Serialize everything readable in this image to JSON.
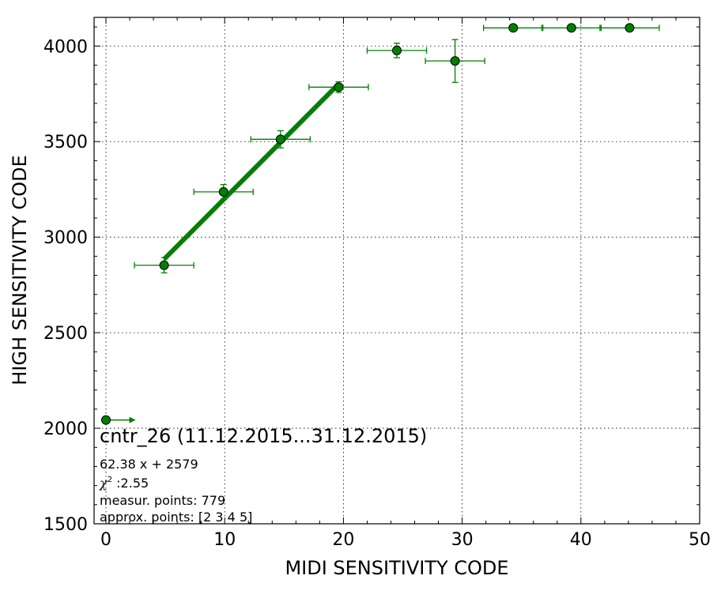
{
  "chart_data": {
    "type": "scatter",
    "xlabel": "MIDI SENSITIVITY CODE",
    "ylabel": "HIGH SENSITIVITY CODE",
    "xlim": [
      -1,
      50
    ],
    "ylim": [
      1500,
      4150
    ],
    "x_ticks": [
      0,
      10,
      20,
      30,
      40,
      50
    ],
    "y_ticks": [
      1500,
      2000,
      2500,
      3000,
      3500,
      4000
    ],
    "grid": true,
    "marker_color": "#008000",
    "fit_color": "#008000",
    "points": [
      {
        "x": 0,
        "y": 2043,
        "xerr_minus": 0,
        "xerr_plus": 2.5,
        "yerr": 0,
        "arrow": true
      },
      {
        "x": 4.9,
        "y": 2853,
        "xerr_minus": 2.5,
        "xerr_plus": 2.5,
        "yerr": 40
      },
      {
        "x": 9.9,
        "y": 3237,
        "xerr_minus": 2.5,
        "xerr_plus": 2.5,
        "yerr": 38
      },
      {
        "x": 14.7,
        "y": 3512,
        "xerr_minus": 2.5,
        "xerr_plus": 2.5,
        "yerr": 45
      },
      {
        "x": 19.6,
        "y": 3785,
        "xerr_minus": 2.5,
        "xerr_plus": 2.5,
        "yerr": 28
      },
      {
        "x": 24.5,
        "y": 3977,
        "xerr_minus": 2.5,
        "xerr_plus": 2.5,
        "yerr": 38
      },
      {
        "x": 29.4,
        "y": 3922,
        "xerr_minus": 2.5,
        "xerr_plus": 2.5,
        "yerr": 112
      },
      {
        "x": 34.3,
        "y": 4095,
        "xerr_minus": 2.5,
        "xerr_plus": 2.5,
        "yerr": 0
      },
      {
        "x": 39.2,
        "y": 4095,
        "xerr_minus": 2.5,
        "xerr_plus": 2.5,
        "yerr": 0
      },
      {
        "x": 44.1,
        "y": 4095,
        "xerr_minus": 2.5,
        "xerr_plus": 2.5,
        "yerr": 0
      }
    ],
    "fit": {
      "slope": 62.38,
      "intercept": 2579,
      "x_range": [
        4.9,
        19.6
      ]
    },
    "annotation": {
      "title": "cntr_26 (11.12.2015...31.12.2015)",
      "equation": "62.38 x + 2579",
      "chi2_symbol": "χ",
      "chi2_sup": "2",
      "chi2_value": " :2.55",
      "measur_points": "measur. points: 779",
      "approx_points": "approx. points: [2 3 4 5]"
    }
  }
}
